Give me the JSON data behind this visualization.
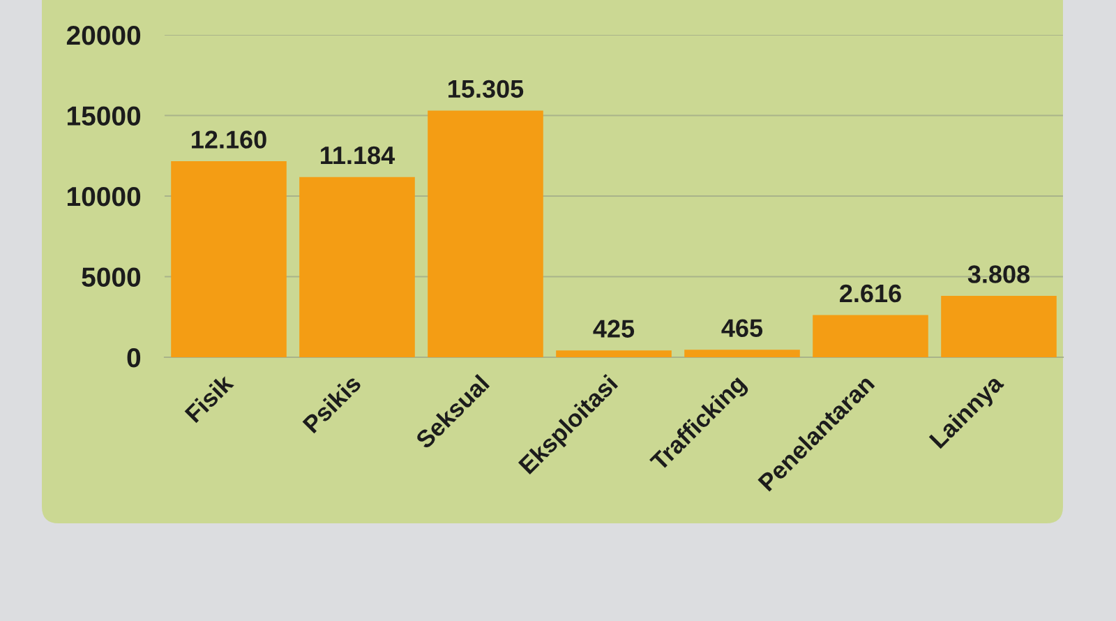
{
  "chart_data": {
    "type": "bar",
    "categories": [
      "Fisik",
      "Psikis",
      "Seksual",
      "Eksploitasi",
      "Trafficking",
      "Penelantaran",
      "Lainnya"
    ],
    "values": [
      12160,
      11184,
      15305,
      425,
      465,
      2616,
      3808
    ],
    "value_labels": [
      "12.160",
      "11.184",
      "15.305",
      "425",
      "465",
      "2.616",
      "3.808"
    ],
    "color": "#f49d14",
    "ylim": [
      0,
      20000
    ],
    "yticks": [
      0,
      5000,
      10000,
      15000,
      20000
    ],
    "grid": "y"
  }
}
